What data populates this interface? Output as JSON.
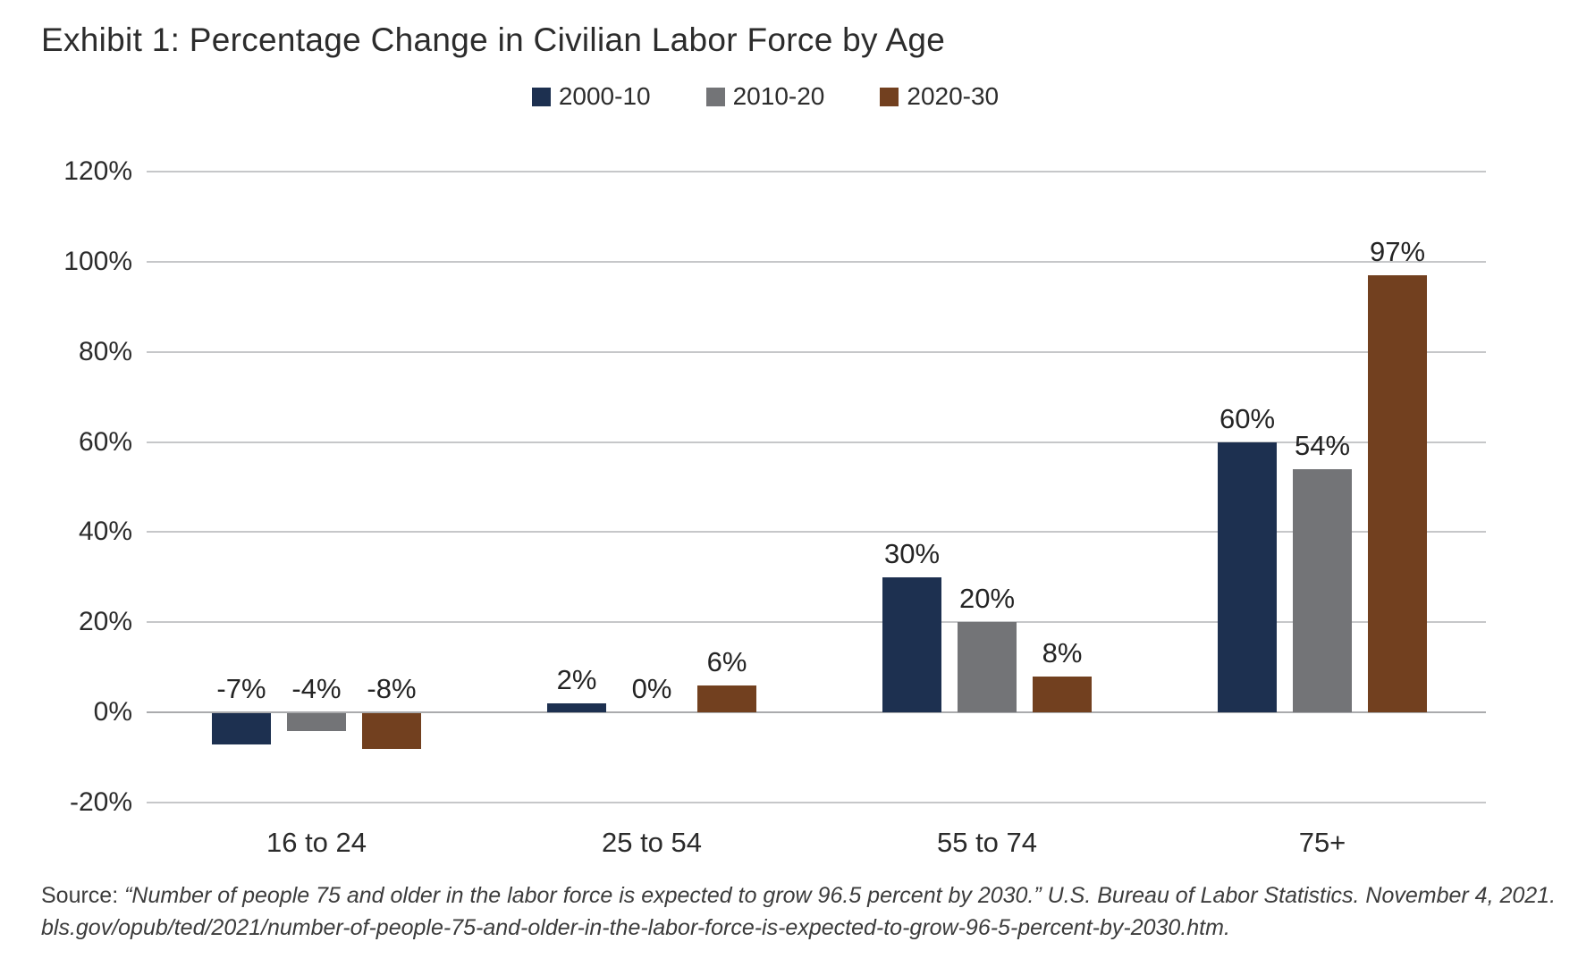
{
  "page": {
    "title": "Exhibit 1: Percentage Change in Civilian Labor Force by Age",
    "source": {
      "prefix": "Source: ",
      "line1": "“Number of people 75 and older in the labor force is expected to grow 96.5 percent by 2030.” U.S. Bureau of Labor Statistics. November 4, 2021.",
      "line2": "bls.gov/opub/ted/2021/number-of-people-75-and-older-in-the-labor-force-is-expected-to-grow-96-5-percent-by-2030.htm."
    }
  },
  "chart_data": {
    "type": "bar",
    "title": "Exhibit 1: Percentage Change in Civilian Labor Force by Age",
    "categories": [
      "16 to 24",
      "25 to 54",
      "55 to 74",
      "75+"
    ],
    "series": [
      {
        "name": "2000-10",
        "color": "#1d3050",
        "values": [
          -7,
          2,
          30,
          60
        ],
        "value_labels": [
          "-7%",
          "2%",
          "30%",
          "60%"
        ]
      },
      {
        "name": "2010-20",
        "color": "#737477",
        "values": [
          -4,
          0,
          20,
          54
        ],
        "value_labels": [
          "-4%",
          "0%",
          "20%",
          "54%"
        ]
      },
      {
        "name": "2020-30",
        "color": "#72401f",
        "values": [
          -8,
          6,
          8,
          97
        ],
        "value_labels": [
          "-8%",
          "6%",
          "8%",
          "97%"
        ]
      }
    ],
    "ylabel": "",
    "xlabel": "",
    "ylim": [
      -20,
      120
    ],
    "ytick_step": 20,
    "ytick_labels": [
      "120%",
      "100%",
      "80%",
      "60%",
      "40%",
      "20%",
      "0%",
      "-20%"
    ],
    "grid": true,
    "legend_position": "top-center",
    "gridline_color": "#c6c7c9",
    "zero_line_color": "#aaabad"
  }
}
